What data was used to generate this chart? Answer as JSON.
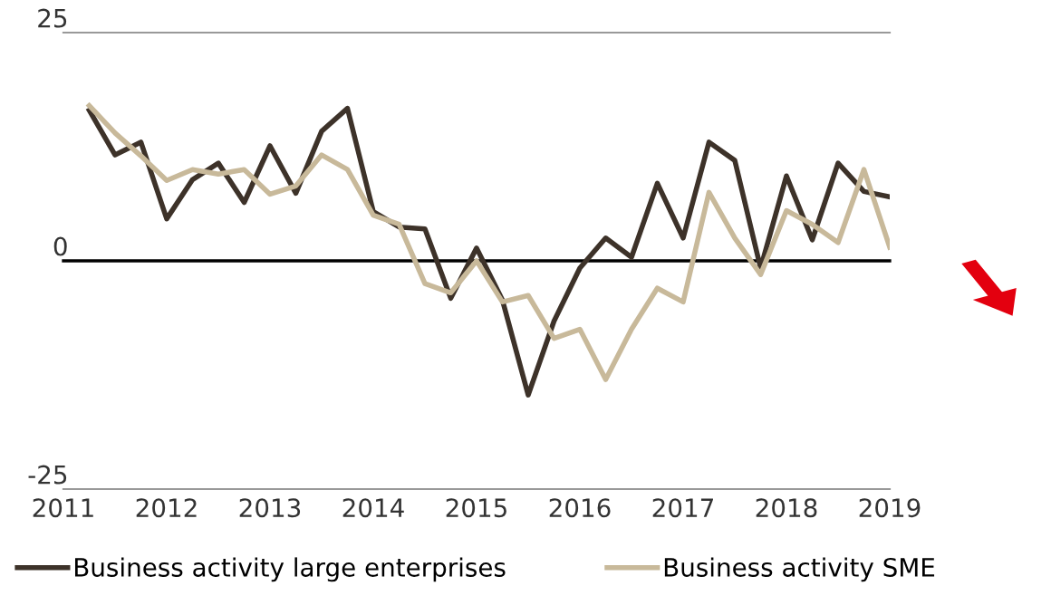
{
  "chart_data": {
    "type": "line",
    "x": [
      2011.25,
      2011.5,
      2011.75,
      2012,
      2012.25,
      2012.5,
      2012.75,
      2013,
      2013.25,
      2013.5,
      2013.75,
      2014,
      2014.25,
      2014.5,
      2014.75,
      2015,
      2015.25,
      2015.5,
      2015.75,
      2016,
      2016.25,
      2016.5,
      2016.75,
      2017,
      2017.25,
      2017.5,
      2017.75,
      2018,
      2018.25,
      2018.5,
      2018.75,
      2019
    ],
    "series": [
      {
        "name": "Business activity large enterprises",
        "color": "#3d3229",
        "values": [
          16.5,
          11.6,
          13,
          4.6,
          8.9,
          10.7,
          6.4,
          12.6,
          7.4,
          14.2,
          16.7,
          5.4,
          3.7,
          3.5,
          -4.1,
          1.4,
          -4.3,
          -14.7,
          -6.6,
          -0.8,
          2.5,
          0.4,
          8.5,
          2.5,
          13,
          11,
          -0.8,
          9.3,
          2.3,
          10.7,
          7.6,
          7
        ]
      },
      {
        "name": "Business activity SME",
        "color": "#c8b99a",
        "values": [
          17,
          14,
          11.5,
          8.8,
          10,
          9.5,
          10,
          7.3,
          8.2,
          11.6,
          10,
          5,
          4,
          -2.5,
          -3.5,
          0,
          -4.5,
          -3.8,
          -8.5,
          -7.5,
          -13,
          -7.5,
          -3,
          -4.5,
          7.5,
          2.5,
          -1.5,
          5.5,
          4,
          2,
          10,
          1.5
        ]
      }
    ],
    "xlim": [
      2011,
      2019
    ],
    "xticks": [
      2011,
      2012,
      2013,
      2014,
      2015,
      2016,
      2017,
      2018,
      2019
    ],
    "ylim": [
      -25,
      25
    ],
    "yticks": [
      -25,
      0,
      25
    ],
    "legend": "bottom",
    "line_style": "solid",
    "marker": "none",
    "ref_lines": [
      {
        "axis": "y",
        "value": 0,
        "color": "#000000"
      }
    ]
  }
}
